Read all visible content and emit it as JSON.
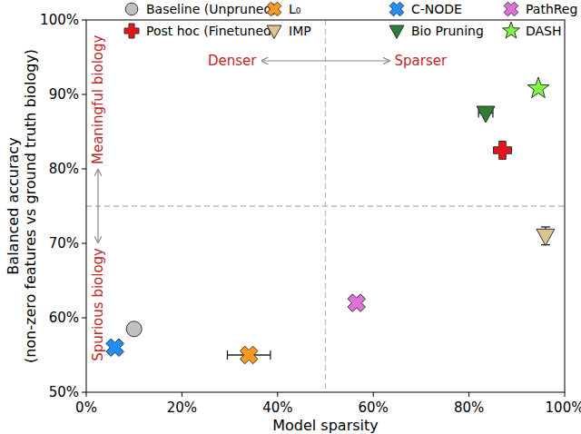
{
  "chart_data": {
    "type": "scatter",
    "xlabel": "Model sparsity",
    "ylabel": [
      "Balanced accuracy",
      "(non-zero features vs ground truth biology)"
    ],
    "xlim": [
      0,
      100
    ],
    "ylim": [
      50,
      100
    ],
    "xticks": [
      {
        "value": 0,
        "label": "0%"
      },
      {
        "value": 20,
        "label": "20%"
      },
      {
        "value": 40,
        "label": "40%"
      },
      {
        "value": 60,
        "label": "60%"
      },
      {
        "value": 80,
        "label": "80%"
      },
      {
        "value": 100,
        "label": "100%"
      }
    ],
    "yticks": [
      {
        "value": 50,
        "label": "50%"
      },
      {
        "value": 60,
        "label": "60%"
      },
      {
        "value": 70,
        "label": "70%"
      },
      {
        "value": 80,
        "label": "80%"
      },
      {
        "value": 90,
        "label": "90%"
      },
      {
        "value": 100,
        "label": "100%"
      }
    ],
    "grid": false,
    "legend": "top",
    "reference_lines": [
      {
        "axis": "x",
        "value": 50
      },
      {
        "axis": "y",
        "value": 75
      }
    ],
    "annotations": [
      {
        "text": "Denser"
      },
      {
        "text": "Sparser"
      },
      {
        "text": "Meaningful biology"
      },
      {
        "text": "Spurious biology"
      }
    ],
    "series": [
      {
        "name": "Baseline (Unpruned)",
        "color": "#c0c0c0",
        "marker": "circle",
        "x": [
          10
        ],
        "values": [
          58.5
        ]
      },
      {
        "name": "Post hoc (Finetuned)",
        "color": "#e8141c",
        "marker": "plus",
        "x": [
          87
        ],
        "values": [
          82.5
        ]
      },
      {
        "name": "L₀",
        "color": "#ff9a1f",
        "marker": "x",
        "x": [
          34
        ],
        "values": [
          55
        ],
        "x_errors": [
          4.5
        ]
      },
      {
        "name": "IMP",
        "color": "#dcc48f",
        "marker": "triangle_down",
        "x": [
          96
        ],
        "values": [
          71
        ],
        "errors": [
          1.2
        ]
      },
      {
        "name": "C-NODE",
        "color": "#1f8fff",
        "marker": "x",
        "x": [
          6
        ],
        "values": [
          56
        ]
      },
      {
        "name": "Bio Pruning",
        "color": "#2e7d32",
        "marker": "triangle_down",
        "x": [
          83.5
        ],
        "values": [
          87.5
        ],
        "x_errors": [
          1.5
        ]
      },
      {
        "name": "PathReg",
        "color": "#e070d8",
        "marker": "x",
        "x": [
          56.5
        ],
        "values": [
          62
        ]
      },
      {
        "name": "DASH",
        "color": "#7cfc3c",
        "marker": "star",
        "x": [
          94.5
        ],
        "values": [
          90.8
        ]
      }
    ]
  }
}
